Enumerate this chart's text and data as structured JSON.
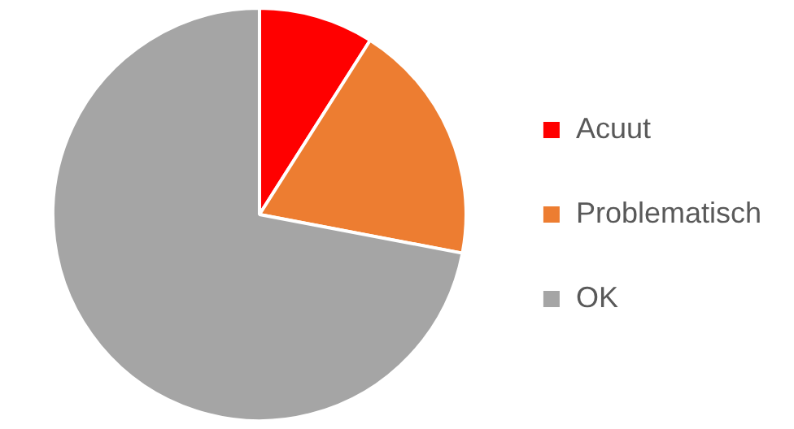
{
  "chart_data": {
    "type": "pie",
    "categories": [
      "Acuut",
      "Problematisch",
      "OK"
    ],
    "values": [
      9,
      19,
      72
    ],
    "colors": [
      "#ff0000",
      "#ed7d31",
      "#a5a5a5"
    ],
    "legend": "right"
  }
}
